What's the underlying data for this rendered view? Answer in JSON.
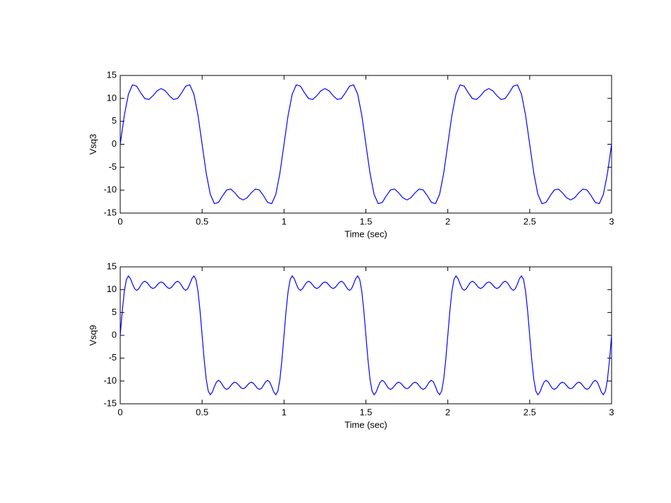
{
  "chart_data": [
    {
      "type": "line",
      "y_label": "Vsq3",
      "x_label": "Time (sec)",
      "color": "#0000ff",
      "grid": false,
      "xlim": [
        0,
        3
      ],
      "ylim": [
        -15,
        15
      ],
      "xticks": [
        0,
        0.5,
        1,
        1.5,
        2,
        2.5,
        3
      ],
      "yticks": [
        -15,
        -10,
        -5,
        0,
        5,
        10,
        15
      ],
      "x": [
        0,
        0.025,
        0.05,
        0.075,
        0.1,
        0.125,
        0.15,
        0.175,
        0.2,
        0.225,
        0.25,
        0.275,
        0.3,
        0.325,
        0.35,
        0.375,
        0.4,
        0.425,
        0.45,
        0.475,
        0.5,
        0.525,
        0.55,
        0.575,
        0.6,
        0.625,
        0.65,
        0.675,
        0.7,
        0.725,
        0.75,
        0.775,
        0.8,
        0.825,
        0.85,
        0.875,
        0.9,
        0.925,
        0.95,
        0.975,
        1,
        1.025,
        1.05,
        1.075,
        1.1,
        1.125,
        1.15,
        1.175,
        1.2,
        1.225,
        1.25,
        1.275,
        1.3,
        1.325,
        1.35,
        1.375,
        1.4,
        1.425,
        1.45,
        1.475,
        1.5,
        1.525,
        1.55,
        1.575,
        1.6,
        1.625,
        1.65,
        1.675,
        1.7,
        1.725,
        1.75,
        1.775,
        1.8,
        1.825,
        1.85,
        1.875,
        1.9,
        1.925,
        1.95,
        1.975,
        2,
        2.025,
        2.05,
        2.075,
        2.1,
        2.125,
        2.15,
        2.175,
        2.2,
        2.225,
        2.25,
        2.275,
        2.3,
        2.325,
        2.35,
        2.375,
        2.4,
        2.425,
        2.45,
        2.475,
        2.5,
        2.525,
        2.55,
        2.575,
        2.6,
        2.625,
        2.65,
        2.675,
        2.7,
        2.725,
        2.75,
        2.775,
        2.8,
        2.825,
        2.85,
        2.875,
        2.9,
        2.925,
        2.95,
        2.975,
        3
      ],
      "values": [
        0,
        6.29,
        10.91,
        12.95,
        12.67,
        11.22,
        9.97,
        9.77,
        10.58,
        11.65,
        12.14,
        11.65,
        10.58,
        9.77,
        9.97,
        11.22,
        12.67,
        12.95,
        10.91,
        6.29,
        0,
        -6.29,
        -10.91,
        -12.95,
        -12.67,
        -11.22,
        -9.97,
        -9.77,
        -10.58,
        -11.65,
        -12.14,
        -11.65,
        -10.58,
        -9.77,
        -9.97,
        -11.22,
        -12.67,
        -12.95,
        -10.91,
        -6.29,
        0,
        6.29,
        10.91,
        12.95,
        12.67,
        11.22,
        9.97,
        9.77,
        10.58,
        11.65,
        12.14,
        11.65,
        10.58,
        9.77,
        9.97,
        11.22,
        12.67,
        12.95,
        10.91,
        6.29,
        0,
        -6.29,
        -10.91,
        -12.95,
        -12.67,
        -11.22,
        -9.97,
        -9.77,
        -10.58,
        -11.65,
        -12.14,
        -11.65,
        -10.58,
        -9.77,
        -9.97,
        -11.22,
        -12.67,
        -12.95,
        -10.91,
        -6.29,
        0,
        6.29,
        10.91,
        12.95,
        12.67,
        11.22,
        9.97,
        9.77,
        10.58,
        11.65,
        12.14,
        11.65,
        10.58,
        9.77,
        9.97,
        11.22,
        12.67,
        12.95,
        10.91,
        6.29,
        0,
        -6.29,
        -10.91,
        -12.95,
        -12.67,
        -11.22,
        -9.97,
        -9.77,
        -10.58,
        -11.65,
        -12.14,
        -11.65,
        -10.58,
        -9.77,
        -9.97,
        -11.22,
        -12.67,
        -12.95,
        -10.91,
        -6.29,
        0
      ]
    },
    {
      "type": "line",
      "y_label": "Vsq9",
      "x_label": "Time (sec)",
      "color": "#0000ff",
      "grid": false,
      "xlim": [
        0,
        3
      ],
      "ylim": [
        -15,
        15
      ],
      "xticks": [
        0,
        0.5,
        1,
        1.5,
        2,
        2.5,
        3
      ],
      "yticks": [
        -15,
        -10,
        -5,
        0,
        5,
        10,
        15
      ],
      "x": [
        0,
        0.0125,
        0.025,
        0.0375,
        0.05,
        0.0625,
        0.075,
        0.0875,
        0.1,
        0.1125,
        0.125,
        0.1375,
        0.15,
        0.1625,
        0.175,
        0.1875,
        0.2,
        0.2125,
        0.225,
        0.2375,
        0.25,
        0.2625,
        0.275,
        0.2875,
        0.3,
        0.3125,
        0.325,
        0.3375,
        0.35,
        0.3625,
        0.375,
        0.3875,
        0.4,
        0.4125,
        0.425,
        0.4375,
        0.45,
        0.4625,
        0.475,
        0.4875,
        0.5,
        0.5125,
        0.525,
        0.5375,
        0.55,
        0.5625,
        0.575,
        0.5875,
        0.6,
        0.6125,
        0.625,
        0.6375,
        0.65,
        0.6625,
        0.675,
        0.6875,
        0.7,
        0.7125,
        0.725,
        0.7375,
        0.75,
        0.7625,
        0.775,
        0.7875,
        0.8,
        0.8125,
        0.825,
        0.8375,
        0.85,
        0.8625,
        0.875,
        0.8875,
        0.9,
        0.9125,
        0.925,
        0.9375,
        0.95,
        0.9625,
        0.975,
        0.9875,
        1,
        1.0125,
        1.025,
        1.0375,
        1.05,
        1.0625,
        1.075,
        1.0875,
        1.1,
        1.1125,
        1.125,
        1.1375,
        1.15,
        1.1625,
        1.175,
        1.1875,
        1.2,
        1.2125,
        1.225,
        1.2375,
        1.25,
        1.2625,
        1.275,
        1.2875,
        1.3,
        1.3125,
        1.325,
        1.3375,
        1.35,
        1.3625,
        1.375,
        1.3875,
        1.4,
        1.4125,
        1.425,
        1.4375,
        1.45,
        1.4625,
        1.475,
        1.4875,
        1.5,
        1.5125,
        1.525,
        1.5375,
        1.55,
        1.5625,
        1.575,
        1.5875,
        1.6,
        1.6125,
        1.625,
        1.6375,
        1.65,
        1.6625,
        1.675,
        1.6875,
        1.7,
        1.7125,
        1.725,
        1.7375,
        1.75,
        1.7625,
        1.775,
        1.7875,
        1.8,
        1.8125,
        1.825,
        1.8375,
        1.85,
        1.8625,
        1.875,
        1.8875,
        1.9,
        1.9125,
        1.925,
        1.9375,
        1.95,
        1.9625,
        1.975,
        1.9875,
        2,
        2.0125,
        2.025,
        2.0375,
        2.05,
        2.0625,
        2.075,
        2.0875,
        2.1,
        2.1125,
        2.125,
        2.1375,
        2.15,
        2.1625,
        2.175,
        2.1875,
        2.2,
        2.2125,
        2.225,
        2.2375,
        2.25,
        2.2625,
        2.275,
        2.2875,
        2.3,
        2.3125,
        2.325,
        2.3375,
        2.35,
        2.3625,
        2.375,
        2.3875,
        2.4,
        2.4125,
        2.425,
        2.4375,
        2.45,
        2.4625,
        2.475,
        2.4875,
        2.5,
        2.5125,
        2.525,
        2.5375,
        2.55,
        2.5625,
        2.575,
        2.5875,
        2.6,
        2.6125,
        2.625,
        2.6375,
        2.65,
        2.6625,
        2.675,
        2.6875,
        2.7,
        2.7125,
        2.725,
        2.7375,
        2.75,
        2.7625,
        2.775,
        2.7875,
        2.8,
        2.8125,
        2.825,
        2.8375,
        2.85,
        2.8625,
        2.875,
        2.8875,
        2.9,
        2.9125,
        2.925,
        2.9375,
        2.95,
        2.9625,
        2.975,
        2.9875,
        3
      ],
      "values": [
        0,
        5.32,
        9.61,
        12.21,
        13.01,
        12.43,
        11.25,
        10.23,
        9.85,
        10.18,
        10.91,
        11.59,
        11.85,
        11.6,
        11.04,
        10.49,
        10.27,
        10.48,
        10.99,
        11.49,
        11.69,
        11.49,
        10.99,
        10.48,
        10.27,
        10.49,
        11.04,
        11.6,
        11.85,
        11.59,
        10.91,
        10.18,
        9.85,
        10.23,
        11.25,
        12.43,
        13.01,
        12.21,
        9.61,
        5.32,
        0,
        -5.32,
        -9.61,
        -12.21,
        -13.01,
        -12.43,
        -11.25,
        -10.23,
        -9.85,
        -10.18,
        -10.91,
        -11.59,
        -11.85,
        -11.6,
        -11.04,
        -10.49,
        -10.27,
        -10.48,
        -10.99,
        -11.49,
        -11.69,
        -11.49,
        -10.99,
        -10.48,
        -10.27,
        -10.49,
        -11.04,
        -11.6,
        -11.85,
        -11.59,
        -10.91,
        -10.18,
        -9.85,
        -10.23,
        -11.25,
        -12.43,
        -13.01,
        -12.21,
        -9.61,
        -5.32,
        0,
        5.32,
        9.61,
        12.21,
        13.01,
        12.43,
        11.25,
        10.23,
        9.85,
        10.18,
        10.91,
        11.59,
        11.85,
        11.6,
        11.04,
        10.49,
        10.27,
        10.48,
        10.99,
        11.49,
        11.69,
        11.49,
        10.99,
        10.48,
        10.27,
        10.49,
        11.04,
        11.6,
        11.85,
        11.59,
        10.91,
        10.18,
        9.85,
        10.23,
        11.25,
        12.43,
        13.01,
        12.21,
        9.61,
        5.32,
        0,
        -5.32,
        -9.61,
        -12.21,
        -13.01,
        -12.43,
        -11.25,
        -10.23,
        -9.85,
        -10.18,
        -10.91,
        -11.59,
        -11.85,
        -11.6,
        -11.04,
        -10.49,
        -10.27,
        -10.48,
        -10.99,
        -11.49,
        -11.69,
        -11.49,
        -10.99,
        -10.48,
        -10.27,
        -10.49,
        -11.04,
        -11.6,
        -11.85,
        -11.59,
        -10.91,
        -10.18,
        -9.85,
        -10.23,
        -11.25,
        -12.43,
        -13.01,
        -12.21,
        -9.61,
        -5.32,
        0,
        5.32,
        9.61,
        12.21,
        13.01,
        12.43,
        11.25,
        10.23,
        9.85,
        10.18,
        10.91,
        11.59,
        11.85,
        11.6,
        11.04,
        10.49,
        10.27,
        10.48,
        10.99,
        11.49,
        11.69,
        11.49,
        10.99,
        10.48,
        10.27,
        10.49,
        11.04,
        11.6,
        11.85,
        11.59,
        10.91,
        10.18,
        9.85,
        10.23,
        11.25,
        12.43,
        13.01,
        12.21,
        9.61,
        5.32,
        0,
        -5.32,
        -9.61,
        -12.21,
        -13.01,
        -12.43,
        -11.25,
        -10.23,
        -9.85,
        -10.18,
        -10.91,
        -11.59,
        -11.85,
        -11.6,
        -11.04,
        -10.49,
        -10.27,
        -10.48,
        -10.99,
        -11.49,
        -11.69,
        -11.49,
        -10.99,
        -10.48,
        -10.27,
        -10.49,
        -11.04,
        -11.6,
        -11.85,
        -11.59,
        -10.91,
        -10.18,
        -9.85,
        -10.23,
        -11.25,
        -12.43,
        -13.01,
        -12.21,
        -9.61,
        -5.32,
        0
      ]
    }
  ]
}
